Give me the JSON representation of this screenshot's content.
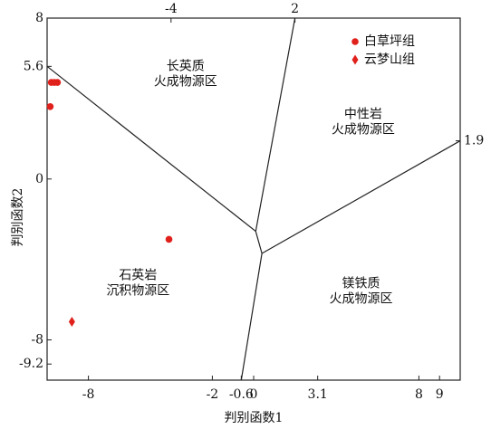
{
  "chart_data": {
    "type": "scatter",
    "xlabel": "判别函数1",
    "ylabel": "判别函数2",
    "xlim": [
      -10,
      10
    ],
    "ylim": [
      -10,
      8
    ],
    "xticks": [
      -8,
      -2,
      -0.6,
      0,
      3.1,
      8,
      9
    ],
    "xticks_top": [
      -4,
      2
    ],
    "yticks": [
      8,
      5.6,
      0,
      -8,
      -9.2
    ],
    "y2lim": [
      -10,
      8
    ],
    "y2ticks": [
      1.9
    ],
    "legend": "upper right",
    "boundaries": [
      {
        "x": [
          -10,
          0.1
        ],
        "y": [
          5.6,
          -2.6
        ]
      },
      {
        "x": [
          0.1,
          2
        ],
        "y": [
          -2.6,
          8
        ]
      },
      {
        "x": [
          0.1,
          0.4
        ],
        "y": [
          -2.6,
          -3.7
        ]
      },
      {
        "x": [
          0.4,
          10
        ],
        "y": [
          -3.7,
          1.9
        ]
      },
      {
        "x": [
          0.4,
          -0.6
        ],
        "y": [
          -3.7,
          -10
        ]
      }
    ],
    "annotations": [
      {
        "text": [
          "长英质",
          "火成物源区"
        ],
        "x": -3.3,
        "y": 5.6
      },
      {
        "text": [
          "中性岩",
          "火成物源区"
        ],
        "x": 5.3,
        "y": 3.2
      },
      {
        "text": [
          "石英岩",
          "沉积物源区"
        ],
        "x": -5.6,
        "y": -4.8
      },
      {
        "text": [
          "镁铁质",
          "火成物源区"
        ],
        "x": 5.2,
        "y": -5.2
      }
    ],
    "series": [
      {
        "name": "白草坪组",
        "color": "#e0201b",
        "marker": "circle",
        "x": [
          -9.8,
          -9.65,
          -9.5,
          -9.85,
          -4.1
        ],
        "values": [
          4.8,
          4.8,
          4.8,
          3.6,
          -3.0
        ]
      },
      {
        "name": "云梦山组",
        "color": "#e0201b",
        "marker": "diamond",
        "x": [
          -8.8
        ],
        "values": [
          -7.1
        ]
      }
    ]
  }
}
